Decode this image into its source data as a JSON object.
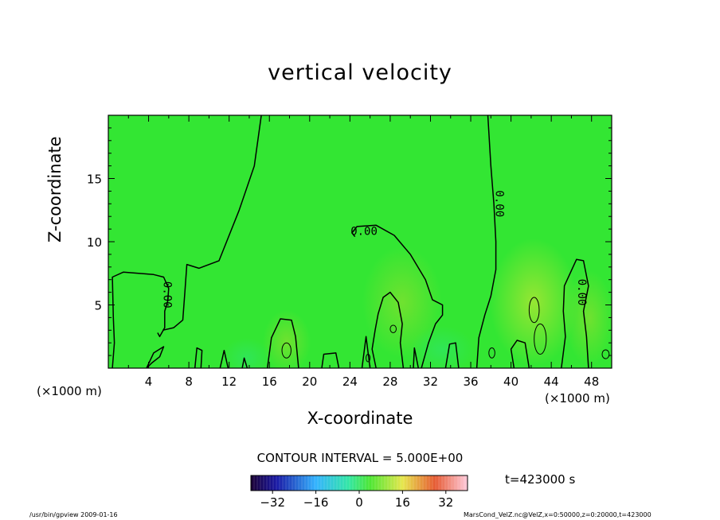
{
  "title": "vertical velocity",
  "xlabel": "X-coordinate",
  "ylabel": "Z-coordinate",
  "x_unit_left": "(×1000 m)",
  "x_unit_right": "(×1000 m)",
  "contour_interval": "CONTOUR INTERVAL = 5.000E+00",
  "time_label": "t=423000  s",
  "footer_left": "/usr/bin/gpview   2009-01-16",
  "footer_right": "MarsCond_VelZ.nc@VelZ,x=0:50000,z=0:20000,t=423000",
  "colors": {
    "field": "#33e633",
    "contour": "#000000"
  },
  "chart_data": {
    "type": "heatmap",
    "title": "vertical velocity",
    "xlabel": "X-coordinate",
    "ylabel": "Z-coordinate",
    "xlim": [
      0,
      50
    ],
    "ylim": [
      0,
      20
    ],
    "xticks": [
      4,
      8,
      12,
      16,
      20,
      24,
      28,
      32,
      36,
      40,
      44,
      48
    ],
    "yticks": [
      5,
      10,
      15
    ],
    "contour_interval": 5.0,
    "contour_labels": [
      {
        "text": "0.00",
        "x": 5.8,
        "y": 5.8
      },
      {
        "text": "0.00",
        "x": 25.4,
        "y": 10.8
      },
      {
        "text": "0.00",
        "x": 38.8,
        "y": 13.0
      },
      {
        "text": "0.00",
        "x": 47.0,
        "y": 6.0
      }
    ],
    "zero_contours": [
      [
        [
          0.4,
          0
        ],
        [
          0.6,
          2
        ],
        [
          0.5,
          4
        ],
        [
          0.4,
          7.2
        ],
        [
          1.5,
          7.6
        ],
        [
          3,
          7.5
        ],
        [
          4.5,
          7.4
        ],
        [
          5.5,
          7.2
        ],
        [
          6,
          6.3
        ],
        [
          5.9,
          5.3
        ],
        [
          5.6,
          4.5
        ],
        [
          5.6,
          3.2
        ],
        [
          5.1,
          2.5
        ],
        [
          4.9,
          2.8
        ]
      ],
      [
        [
          15.2,
          20
        ],
        [
          14.5,
          16
        ],
        [
          13,
          12.5
        ],
        [
          11,
          8.5
        ],
        [
          9,
          7.9
        ],
        [
          7.8,
          8.2
        ],
        [
          7.6,
          6
        ],
        [
          7.4,
          3.8
        ],
        [
          6.5,
          3.2
        ],
        [
          5.4,
          3
        ]
      ],
      [
        [
          24.5,
          10.4
        ],
        [
          24.2,
          10.7
        ],
        [
          24.7,
          11.2
        ],
        [
          26.6,
          11.3
        ],
        [
          28.4,
          10.5
        ],
        [
          30,
          9
        ],
        [
          31.5,
          7
        ],
        [
          32.2,
          5.4
        ],
        [
          33.2,
          5
        ],
        [
          33.2,
          4.2
        ],
        [
          32.5,
          3.5
        ],
        [
          31.8,
          2
        ],
        [
          31.1,
          0
        ]
      ],
      [
        [
          37.7,
          20
        ],
        [
          38,
          16
        ],
        [
          38.3,
          13
        ],
        [
          38.5,
          10
        ],
        [
          38.5,
          7.8
        ],
        [
          38,
          5.7
        ],
        [
          37.4,
          4.2
        ],
        [
          36.8,
          2.4
        ],
        [
          36.6,
          0
        ]
      ],
      [
        [
          26.6,
          0
        ],
        [
          26.2,
          1.5
        ],
        [
          26.5,
          3
        ],
        [
          26.8,
          4.3
        ],
        [
          27.3,
          5.6
        ],
        [
          28,
          6
        ],
        [
          28.8,
          5.2
        ],
        [
          29.2,
          3.5
        ],
        [
          29,
          2
        ],
        [
          29.3,
          0
        ]
      ],
      [
        [
          15.8,
          0
        ],
        [
          16.2,
          2.4
        ],
        [
          17.1,
          3.9
        ],
        [
          18.2,
          3.8
        ],
        [
          18.6,
          2.5
        ],
        [
          18.9,
          0
        ]
      ],
      [
        [
          45,
          0
        ],
        [
          45.4,
          2.5
        ],
        [
          45.2,
          4.5
        ],
        [
          45.3,
          6.5
        ],
        [
          46.5,
          8.6
        ],
        [
          47.2,
          8.5
        ],
        [
          47.7,
          6.5
        ],
        [
          47.2,
          4.5
        ],
        [
          47.5,
          2.5
        ],
        [
          47.7,
          0
        ]
      ],
      [
        [
          40.3,
          0
        ],
        [
          40,
          1.5
        ],
        [
          40.6,
          2.2
        ],
        [
          41.4,
          2
        ],
        [
          41.8,
          0
        ]
      ],
      [
        [
          33.5,
          0
        ],
        [
          33.9,
          1.9
        ],
        [
          34.5,
          2
        ],
        [
          34.8,
          0
        ]
      ],
      [
        [
          21.2,
          0
        ],
        [
          21.4,
          1.1
        ],
        [
          22.6,
          1.2
        ],
        [
          22.9,
          0
        ]
      ],
      [
        [
          3.8,
          0
        ],
        [
          4.5,
          1.2
        ],
        [
          5.5,
          1.7
        ],
        [
          5.1,
          0.9
        ],
        [
          4.3,
          0.4
        ],
        [
          3.8,
          0
        ]
      ],
      [
        [
          8.6,
          0
        ],
        [
          8.8,
          1.6
        ],
        [
          9.3,
          1.4
        ],
        [
          9.2,
          0
        ]
      ],
      [
        [
          11.1,
          0
        ],
        [
          11.5,
          1.4
        ],
        [
          11.9,
          0
        ]
      ],
      [
        [
          13.3,
          0
        ],
        [
          13.5,
          0.8
        ],
        [
          13.8,
          0
        ]
      ],
      [
        [
          25.2,
          0
        ],
        [
          25.6,
          2.5
        ],
        [
          26,
          0
        ]
      ],
      [
        [
          30.3,
          0
        ],
        [
          30.4,
          1.6
        ],
        [
          30.8,
          0
        ]
      ],
      [
        [
          0,
          0
        ],
        [
          0,
          0
        ]
      ]
    ],
    "closed_contours": [
      {
        "cx": 17.7,
        "cy": 1.4,
        "rx": 0.45,
        "ry": 0.6
      },
      {
        "cx": 42.3,
        "cy": 4.6,
        "rx": 0.5,
        "ry": 1.0
      },
      {
        "cx": 42.9,
        "cy": 2.3,
        "rx": 0.6,
        "ry": 1.2
      },
      {
        "cx": 28.3,
        "cy": 3.1,
        "rx": 0.3,
        "ry": 0.3
      },
      {
        "cx": 25.8,
        "cy": 0.8,
        "rx": 0.2,
        "ry": 0.3
      },
      {
        "cx": 38.1,
        "cy": 1.2,
        "rx": 0.3,
        "ry": 0.4
      },
      {
        "cx": 49.4,
        "cy": 1.1,
        "rx": 0.35,
        "ry": 0.35
      }
    ],
    "colorbar": {
      "range": [
        -40,
        40
      ],
      "ticks": [
        -32,
        -16,
        0,
        16,
        32
      ],
      "tick_labels": [
        "−32",
        "−16",
        "0",
        "16",
        "32"
      ]
    }
  }
}
